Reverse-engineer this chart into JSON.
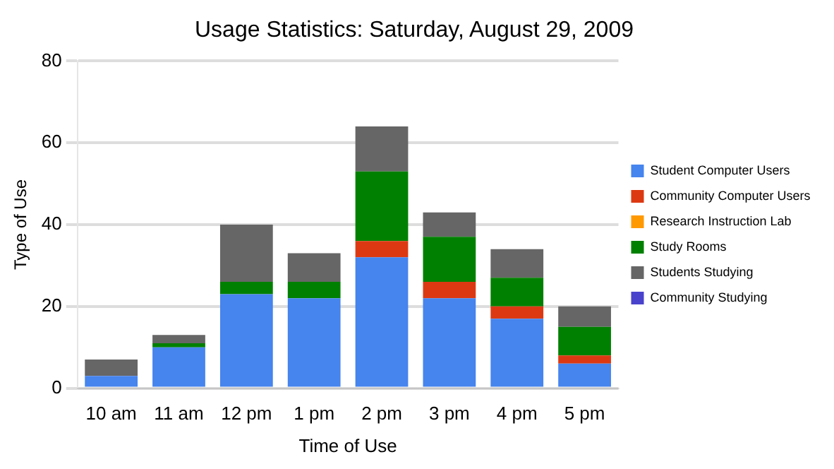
{
  "chart_data": {
    "type": "bar",
    "title": "Usage Statistics: Saturday, August 29, 2009",
    "xlabel": "Time of Use",
    "ylabel": "Type of Use",
    "categories": [
      "10 am",
      "11 am",
      "12 pm",
      "1 pm",
      "2 pm",
      "3 pm",
      "4 pm",
      "5 pm"
    ],
    "stacked": true,
    "ylim": [
      0,
      80
    ],
    "yticks": [
      0,
      20,
      40,
      60,
      80
    ],
    "grid": "y",
    "legend": "right",
    "series": [
      {
        "name": "Student Computer Users",
        "color": "#4684ee",
        "values": [
          3,
          10,
          23,
          22,
          32,
          22,
          17,
          6
        ]
      },
      {
        "name": "Community Computer Users",
        "color": "#dc3912",
        "values": [
          0,
          0,
          0,
          0,
          4,
          4,
          3,
          2
        ]
      },
      {
        "name": "Research Instruction Lab",
        "color": "#ff9900",
        "values": [
          0,
          0,
          0,
          0,
          0,
          0,
          0,
          0
        ]
      },
      {
        "name": "Study Rooms",
        "color": "#008000",
        "values": [
          0,
          1,
          3,
          4,
          17,
          11,
          7,
          7
        ]
      },
      {
        "name": "Students Studying",
        "color": "#666666",
        "values": [
          4,
          2,
          14,
          7,
          11,
          6,
          7,
          5
        ]
      },
      {
        "name": "Community Studying",
        "color": "#4942cc",
        "values": [
          0,
          0,
          0,
          0,
          0,
          0,
          0,
          0
        ]
      }
    ]
  }
}
